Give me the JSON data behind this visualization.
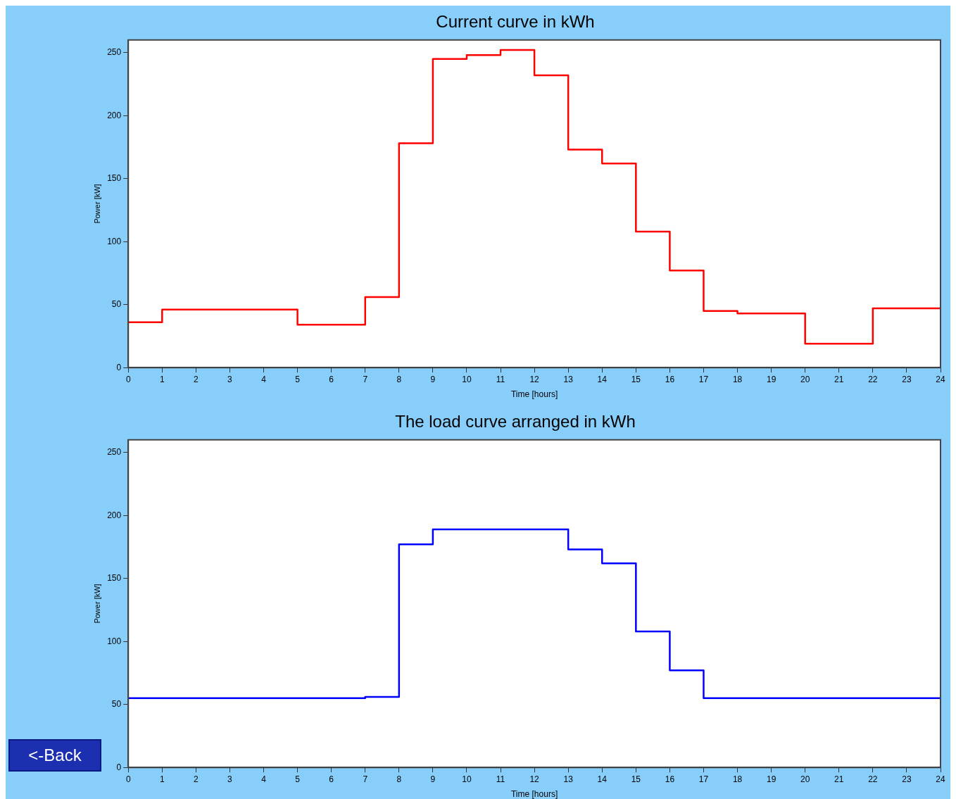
{
  "chart_data": [
    {
      "type": "step",
      "title": "Current curve in kWh",
      "xlabel": "Time [hours]",
      "ylabel": "Power [kW]",
      "xlim": [
        0,
        24
      ],
      "xticks": [
        0,
        1,
        2,
        3,
        4,
        5,
        6,
        7,
        8,
        9,
        10,
        11,
        12,
        13,
        14,
        15,
        16,
        17,
        18,
        19,
        20,
        21,
        22,
        23,
        24
      ],
      "ylim": [
        0,
        260
      ],
      "yticks": [
        0,
        50,
        100,
        150,
        200,
        250
      ],
      "grid": false,
      "legend": false,
      "series": [
        {
          "color": "#ff0000",
          "x": [
            0,
            1,
            5,
            7,
            8,
            9,
            10,
            11,
            12,
            13,
            14,
            15,
            16,
            17,
            18,
            20,
            22,
            24
          ],
          "values": [
            36,
            46,
            34,
            56,
            178,
            245,
            248,
            252,
            232,
            173,
            162,
            108,
            77,
            45,
            43,
            19,
            47,
            47
          ]
        }
      ]
    },
    {
      "type": "step",
      "title": "The load curve arranged in kWh",
      "xlabel": "Time [hours]",
      "ylabel": "Power [kW]",
      "xlim": [
        0,
        24
      ],
      "xticks": [
        0,
        1,
        2,
        3,
        4,
        5,
        6,
        7,
        8,
        9,
        10,
        11,
        12,
        13,
        14,
        15,
        16,
        17,
        18,
        19,
        20,
        21,
        22,
        23,
        24
      ],
      "ylim": [
        0,
        260
      ],
      "yticks": [
        0,
        50,
        100,
        150,
        200,
        250
      ],
      "grid": false,
      "legend": false,
      "annotations": [
        "<-Back"
      ],
      "series": [
        {
          "color": "#0000ff",
          "x": [
            0,
            7,
            8,
            9,
            13,
            14,
            15,
            16,
            17,
            24
          ],
          "values": [
            55,
            56,
            177,
            189,
            173,
            162,
            108,
            77,
            55,
            55
          ]
        }
      ]
    }
  ]
}
